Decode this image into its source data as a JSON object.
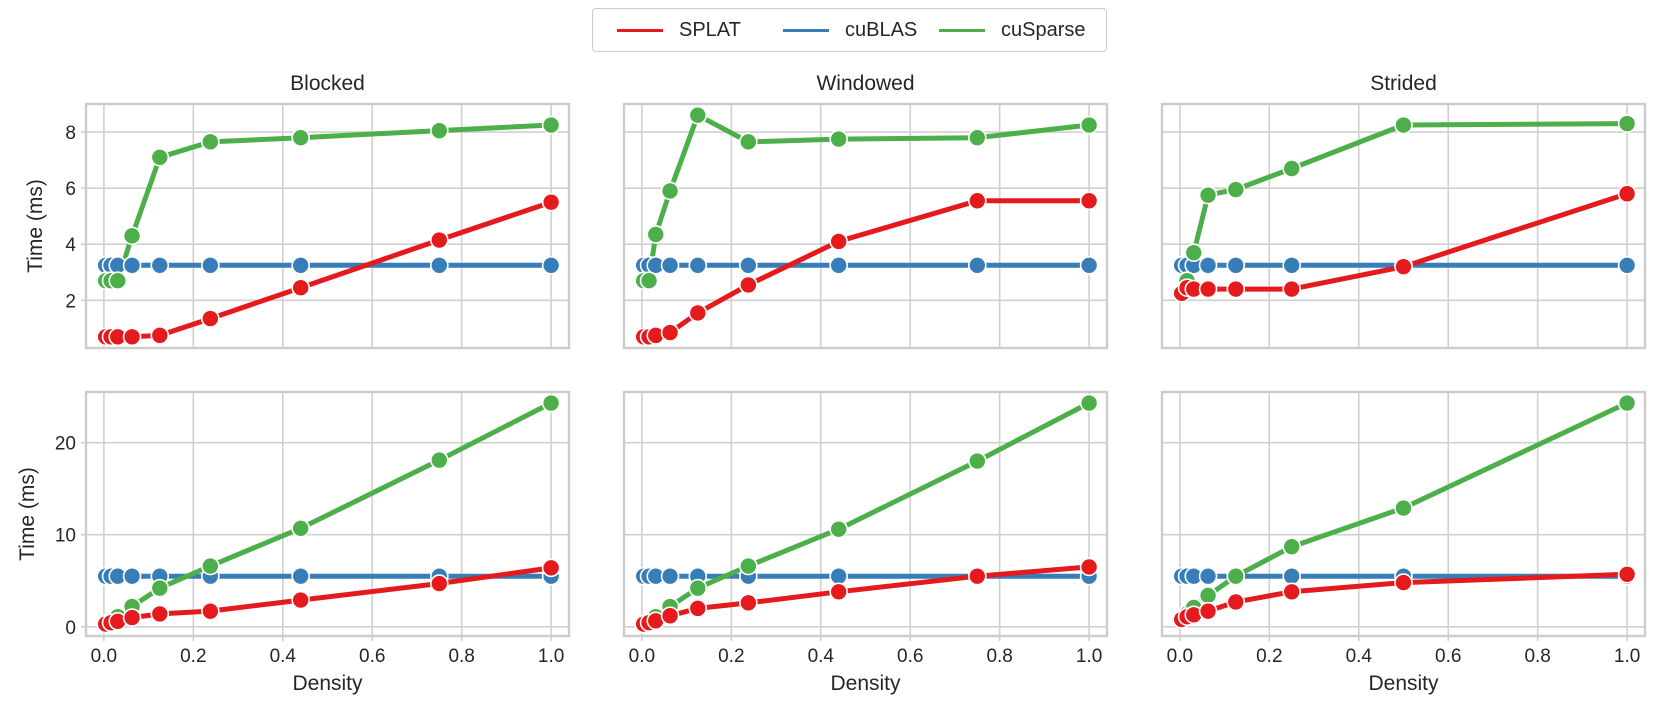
{
  "colors": {
    "SPLAT": "#e41a1c",
    "cuBLAS": "#377eb8",
    "cuSparse": "#4daf4a",
    "grid": "#d0d0d0",
    "frame": "#cccccc"
  },
  "legend": [
    {
      "name": "SPLAT",
      "color": "#e41a1c"
    },
    {
      "name": "cuBLAS",
      "color": "#377eb8"
    },
    {
      "name": "cuSparse",
      "color": "#4daf4a"
    }
  ],
  "chart_data": [
    {
      "type": "line",
      "title": "Blocked",
      "xlabel": "",
      "ylabel": "Time (ms)",
      "xlim": [
        -0.04,
        1.04
      ],
      "ylim": [
        0.3,
        9.0
      ],
      "yticks": [
        2,
        4,
        6,
        8
      ],
      "yticklabels": [
        "2",
        "4",
        "6",
        "8"
      ],
      "xticks": [
        0,
        0.2,
        0.4,
        0.6,
        0.8,
        1.0
      ],
      "xticklabels": [],
      "series": [
        {
          "name": "SPLAT",
          "x": [
            0.004,
            0.016,
            0.031,
            0.063,
            0.125,
            0.238,
            0.44,
            0.75,
            1.0
          ],
          "y": [
            0.7,
            0.7,
            0.7,
            0.7,
            0.75,
            1.35,
            2.45,
            4.15,
            5.5
          ]
        },
        {
          "name": "cuBLAS",
          "x": [
            0.004,
            0.016,
            0.031,
            0.063,
            0.125,
            0.238,
            0.44,
            0.75,
            1.0
          ],
          "y": [
            3.25,
            3.25,
            3.25,
            3.25,
            3.25,
            3.25,
            3.25,
            3.25,
            3.25
          ]
        },
        {
          "name": "cuSparse",
          "x": [
            0.004,
            0.016,
            0.031,
            0.063,
            0.125,
            0.238,
            0.44,
            0.75,
            1.0
          ],
          "y": [
            2.7,
            2.7,
            2.7,
            4.3,
            7.1,
            7.65,
            7.8,
            8.05,
            8.25
          ]
        }
      ]
    },
    {
      "type": "line",
      "title": "Windowed",
      "xlabel": "",
      "ylabel": "",
      "xlim": [
        -0.04,
        1.04
      ],
      "ylim": [
        0.3,
        9.0
      ],
      "yticks": [
        2,
        4,
        6,
        8
      ],
      "yticklabels": [],
      "xticks": [
        0,
        0.2,
        0.4,
        0.6,
        0.8,
        1.0
      ],
      "xticklabels": [],
      "series": [
        {
          "name": "SPLAT",
          "x": [
            0.004,
            0.016,
            0.031,
            0.063,
            0.125,
            0.238,
            0.44,
            0.75,
            1.0
          ],
          "y": [
            0.7,
            0.7,
            0.75,
            0.85,
            1.55,
            2.55,
            4.1,
            5.55,
            5.55
          ]
        },
        {
          "name": "cuBLAS",
          "x": [
            0.004,
            0.016,
            0.031,
            0.063,
            0.125,
            0.238,
            0.44,
            0.75,
            1.0
          ],
          "y": [
            3.25,
            3.25,
            3.25,
            3.25,
            3.25,
            3.25,
            3.25,
            3.25,
            3.25
          ]
        },
        {
          "name": "cuSparse",
          "x": [
            0.004,
            0.016,
            0.031,
            0.063,
            0.125,
            0.238,
            0.44,
            0.75,
            1.0
          ],
          "y": [
            2.7,
            2.7,
            4.35,
            5.9,
            8.6,
            7.65,
            7.75,
            7.8,
            8.25
          ]
        }
      ]
    },
    {
      "type": "line",
      "title": "Strided",
      "xlabel": "",
      "ylabel": "",
      "xlim": [
        -0.04,
        1.04
      ],
      "ylim": [
        0.3,
        9.0
      ],
      "yticks": [
        2,
        4,
        6,
        8
      ],
      "yticklabels": [],
      "xticks": [
        0,
        0.2,
        0.4,
        0.6,
        0.8,
        1.0
      ],
      "xticklabels": [],
      "series": [
        {
          "name": "SPLAT",
          "x": [
            0.004,
            0.016,
            0.031,
            0.063,
            0.125,
            0.25,
            0.5,
            1.0
          ],
          "y": [
            2.25,
            2.45,
            2.4,
            2.4,
            2.4,
            2.4,
            3.2,
            5.8
          ]
        },
        {
          "name": "cuBLAS",
          "x": [
            0.004,
            0.016,
            0.031,
            0.063,
            0.125,
            0.25,
            0.5,
            1.0
          ],
          "y": [
            3.25,
            3.25,
            3.25,
            3.25,
            3.25,
            3.25,
            3.25,
            3.25
          ]
        },
        {
          "name": "cuSparse",
          "x": [
            0.004,
            0.016,
            0.031,
            0.063,
            0.125,
            0.25,
            0.5,
            1.0
          ],
          "y": [
            2.25,
            2.7,
            3.7,
            5.75,
            5.95,
            6.7,
            8.25,
            8.3
          ]
        }
      ]
    },
    {
      "type": "line",
      "title": "",
      "xlabel": "Density",
      "ylabel": "Time (ms)",
      "xlim": [
        -0.04,
        1.04
      ],
      "ylim": [
        -1.0,
        25.5
      ],
      "yticks": [
        0,
        10,
        20
      ],
      "yticklabels": [
        "0",
        "10",
        "20"
      ],
      "xticks": [
        0,
        0.2,
        0.4,
        0.6,
        0.8,
        1.0
      ],
      "xticklabels": [
        "0.0",
        "0.2",
        "0.4",
        "0.6",
        "0.8",
        "1.0"
      ],
      "series": [
        {
          "name": "SPLAT",
          "x": [
            0.004,
            0.016,
            0.031,
            0.063,
            0.125,
            0.238,
            0.44,
            0.75,
            1.0
          ],
          "y": [
            0.3,
            0.45,
            0.6,
            1.0,
            1.4,
            1.7,
            2.9,
            4.7,
            6.4
          ]
        },
        {
          "name": "cuBLAS",
          "x": [
            0.004,
            0.016,
            0.031,
            0.063,
            0.125,
            0.238,
            0.44,
            0.75,
            1.0
          ],
          "y": [
            5.5,
            5.5,
            5.5,
            5.5,
            5.5,
            5.5,
            5.5,
            5.5,
            5.5
          ]
        },
        {
          "name": "cuSparse",
          "x": [
            0.004,
            0.016,
            0.031,
            0.063,
            0.125,
            0.238,
            0.44,
            0.75,
            1.0
          ],
          "y": [
            0.3,
            0.6,
            1.1,
            2.2,
            4.2,
            6.6,
            10.7,
            18.1,
            24.3
          ]
        }
      ]
    },
    {
      "type": "line",
      "title": "",
      "xlabel": "Density",
      "ylabel": "",
      "xlim": [
        -0.04,
        1.04
      ],
      "ylim": [
        -1.0,
        25.5
      ],
      "yticks": [
        0,
        10,
        20
      ],
      "yticklabels": [],
      "xticks": [
        0,
        0.2,
        0.4,
        0.6,
        0.8,
        1.0
      ],
      "xticklabels": [
        "0.0",
        "0.2",
        "0.4",
        "0.6",
        "0.8",
        "1.0"
      ],
      "series": [
        {
          "name": "SPLAT",
          "x": [
            0.004,
            0.016,
            0.031,
            0.063,
            0.125,
            0.238,
            0.44,
            0.75,
            1.0
          ],
          "y": [
            0.3,
            0.45,
            0.65,
            1.2,
            2.0,
            2.6,
            3.8,
            5.5,
            6.5
          ]
        },
        {
          "name": "cuBLAS",
          "x": [
            0.004,
            0.016,
            0.031,
            0.063,
            0.125,
            0.238,
            0.44,
            0.75,
            1.0
          ],
          "y": [
            5.5,
            5.5,
            5.5,
            5.5,
            5.5,
            5.5,
            5.5,
            5.5,
            5.5
          ]
        },
        {
          "name": "cuSparse",
          "x": [
            0.004,
            0.016,
            0.031,
            0.063,
            0.125,
            0.238,
            0.44,
            0.75,
            1.0
          ],
          "y": [
            0.3,
            0.6,
            1.1,
            2.2,
            4.2,
            6.6,
            10.6,
            18.0,
            24.3
          ]
        }
      ]
    },
    {
      "type": "line",
      "title": "",
      "xlabel": "Density",
      "ylabel": "",
      "xlim": [
        -0.04,
        1.04
      ],
      "ylim": [
        -1.0,
        25.5
      ],
      "yticks": [
        0,
        10,
        20
      ],
      "yticklabels": [],
      "xticks": [
        0,
        0.2,
        0.4,
        0.6,
        0.8,
        1.0
      ],
      "xticklabels": [
        "0.0",
        "0.2",
        "0.4",
        "0.6",
        "0.8",
        "1.0"
      ],
      "series": [
        {
          "name": "SPLAT",
          "x": [
            0.004,
            0.016,
            0.031,
            0.063,
            0.125,
            0.25,
            0.5,
            1.0
          ],
          "y": [
            0.8,
            1.1,
            1.3,
            1.7,
            2.7,
            3.8,
            4.8,
            5.7
          ]
        },
        {
          "name": "cuBLAS",
          "x": [
            0.004,
            0.016,
            0.031,
            0.063,
            0.125,
            0.25,
            0.5,
            1.0
          ],
          "y": [
            5.5,
            5.5,
            5.5,
            5.5,
            5.5,
            5.5,
            5.5,
            5.5
          ]
        },
        {
          "name": "cuSparse",
          "x": [
            0.004,
            0.016,
            0.031,
            0.063,
            0.125,
            0.25,
            0.5,
            1.0
          ],
          "y": [
            0.8,
            1.4,
            2.1,
            3.4,
            5.5,
            8.7,
            12.9,
            24.3
          ]
        }
      ]
    }
  ]
}
